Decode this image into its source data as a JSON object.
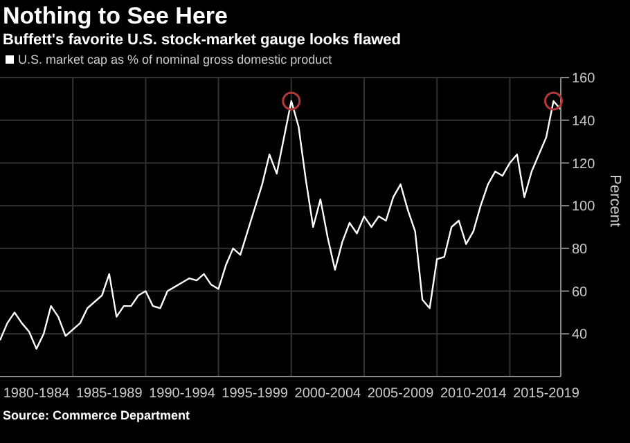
{
  "chart_data": {
    "type": "line",
    "title": "Nothing to See Here",
    "subtitle": "Buffett's favorite U.S. stock-market gauge looks flawed",
    "ylabel": "Percent",
    "annotations": [
      "Source: Commerce Department"
    ],
    "legend": "top left",
    "grid": true,
    "marker": "none",
    "categories": [
      null,
      null,
      null,
      null,
      null,
      "1980-1984",
      null,
      null,
      null,
      null,
      null,
      null,
      null,
      null,
      null,
      "1985-1989",
      null,
      null,
      null,
      null,
      null,
      null,
      null,
      null,
      null,
      "1990-1994",
      null,
      null,
      null,
      null,
      null,
      null,
      null,
      null,
      null,
      "1995-1999",
      null,
      null,
      null,
      null,
      null,
      null,
      null,
      null,
      null,
      "2000-2004",
      null,
      null,
      null,
      null,
      null,
      null,
      null,
      null,
      null,
      "2005-2009",
      null,
      null,
      null,
      null,
      null,
      null,
      null,
      null,
      null,
      "2010-2014",
      null,
      null,
      null,
      null,
      null,
      null,
      null,
      null,
      null,
      "2015-2019",
      null,
      null
    ],
    "ylim": [
      20,
      160
    ],
    "yticks": [
      40,
      60,
      80,
      100,
      120,
      140,
      160
    ],
    "series": [
      {
        "type": "line",
        "name": "U.S. market cap as % of nominal gross domestic product",
        "color": "#ffffff",
        "values": [
          37,
          45,
          50,
          45,
          41,
          33,
          40,
          53,
          48,
          39,
          42,
          45,
          52,
          55,
          58,
          68,
          48,
          53,
          53,
          58,
          60,
          53,
          52,
          60,
          62,
          64,
          66,
          65,
          68,
          63,
          61,
          72,
          80,
          77,
          88,
          99,
          110,
          124,
          115,
          132,
          149,
          137,
          112,
          90,
          103,
          85,
          70,
          83,
          92,
          87,
          95,
          90,
          95,
          93,
          104,
          110,
          98,
          88,
          56,
          52,
          75,
          76,
          90,
          93,
          82,
          88,
          100,
          110,
          116,
          114,
          120,
          124,
          104,
          116,
          124,
          132,
          149,
          145
        ]
      },
      {
        "type": "scatter",
        "color": "#b03a3a",
        "marker": "circle",
        "values": [
          null,
          null,
          null,
          null,
          null,
          null,
          null,
          null,
          null,
          null,
          null,
          null,
          null,
          null,
          null,
          null,
          null,
          null,
          null,
          null,
          null,
          null,
          null,
          null,
          null,
          null,
          null,
          null,
          null,
          null,
          null,
          null,
          null,
          null,
          null,
          null,
          null,
          null,
          null,
          null,
          149,
          null,
          null,
          null,
          null,
          null,
          null,
          null,
          null,
          null,
          null,
          null,
          null,
          null,
          null,
          null,
          null,
          null,
          null,
          null,
          null,
          null,
          null,
          null,
          null,
          null,
          null,
          null,
          null,
          null,
          null,
          null,
          null,
          null,
          null,
          null,
          149,
          null
        ]
      }
    ]
  }
}
